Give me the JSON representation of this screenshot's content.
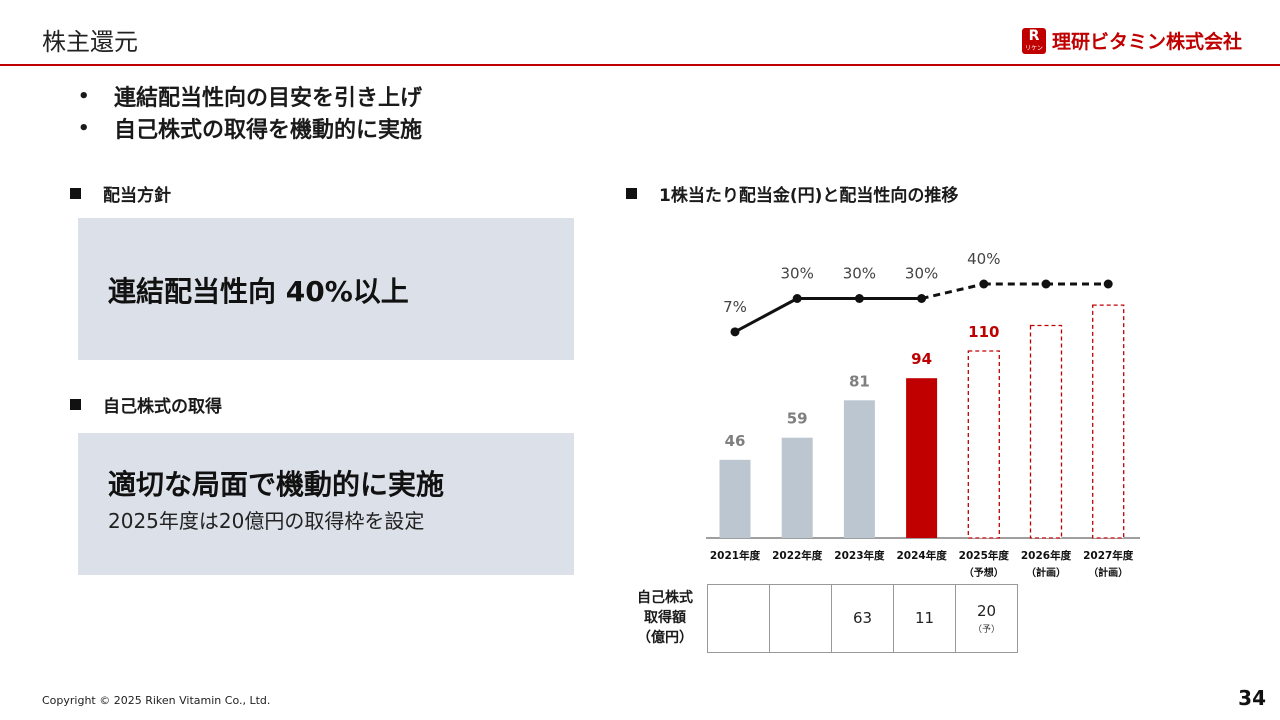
{
  "header": {
    "title": "株主還元"
  },
  "logo": {
    "mark": "R",
    "mark_sub": "リケン",
    "text": "理研ビタミン株式会社"
  },
  "bullets": [
    "連結配当性向の目安を引き上げ",
    "自己株式の取得を機動的に実施"
  ],
  "dividend_policy": {
    "heading": "配当方針",
    "main": "連結配当性向 40%以上"
  },
  "buyback": {
    "heading": "自己株式の取得",
    "main": "適切な局面で機動的に実施",
    "sub": "2025年度は20億円の取得枠を設定"
  },
  "chart_heading": "1株当たり配当金(円)と配当性向の推移",
  "chart_data": {
    "type": "bar",
    "categories": [
      "2021年度",
      "2022年度",
      "2023年度",
      "2024年度",
      "2025年度",
      "2026年度",
      "2027年度"
    ],
    "category_notes": [
      "",
      "",
      "",
      "",
      "（予想）",
      "（計画）",
      "（計画）"
    ],
    "series": [
      {
        "values": [
          46,
          59,
          81,
          94,
          110,
          125,
          137
        ],
        "labels": [
          "46",
          "59",
          "81",
          "94",
          "110",
          "",
          ""
        ],
        "styles": [
          "actual",
          "actual",
          "actual",
          "highlight",
          "forecast",
          "forecast",
          "forecast"
        ]
      },
      {
        "type": "line",
        "values": [
          7,
          30,
          30,
          30,
          40,
          40,
          40
        ],
        "labels": [
          "7%",
          "30%",
          "30%",
          "30%",
          "40%",
          "",
          ""
        ],
        "dashed_from_index": 3
      }
    ],
    "colors": {
      "actual": "#bcc6d1",
      "highlight": "#c00000",
      "forecast": "#c00000",
      "line": "#111111",
      "label_gray": "#7f7f7f"
    }
  },
  "buyback_table": {
    "row_label": [
      "自己株式",
      "取得額",
      "（億円）"
    ],
    "cells": [
      {
        "value": "",
        "note": ""
      },
      {
        "value": "",
        "note": ""
      },
      {
        "value": "63",
        "note": ""
      },
      {
        "value": "11",
        "note": ""
      },
      {
        "value": "20",
        "note": "（予）"
      }
    ]
  },
  "footer": {
    "copyright": "Copyright © 2025 Riken Vitamin Co., Ltd.",
    "page": "34"
  }
}
